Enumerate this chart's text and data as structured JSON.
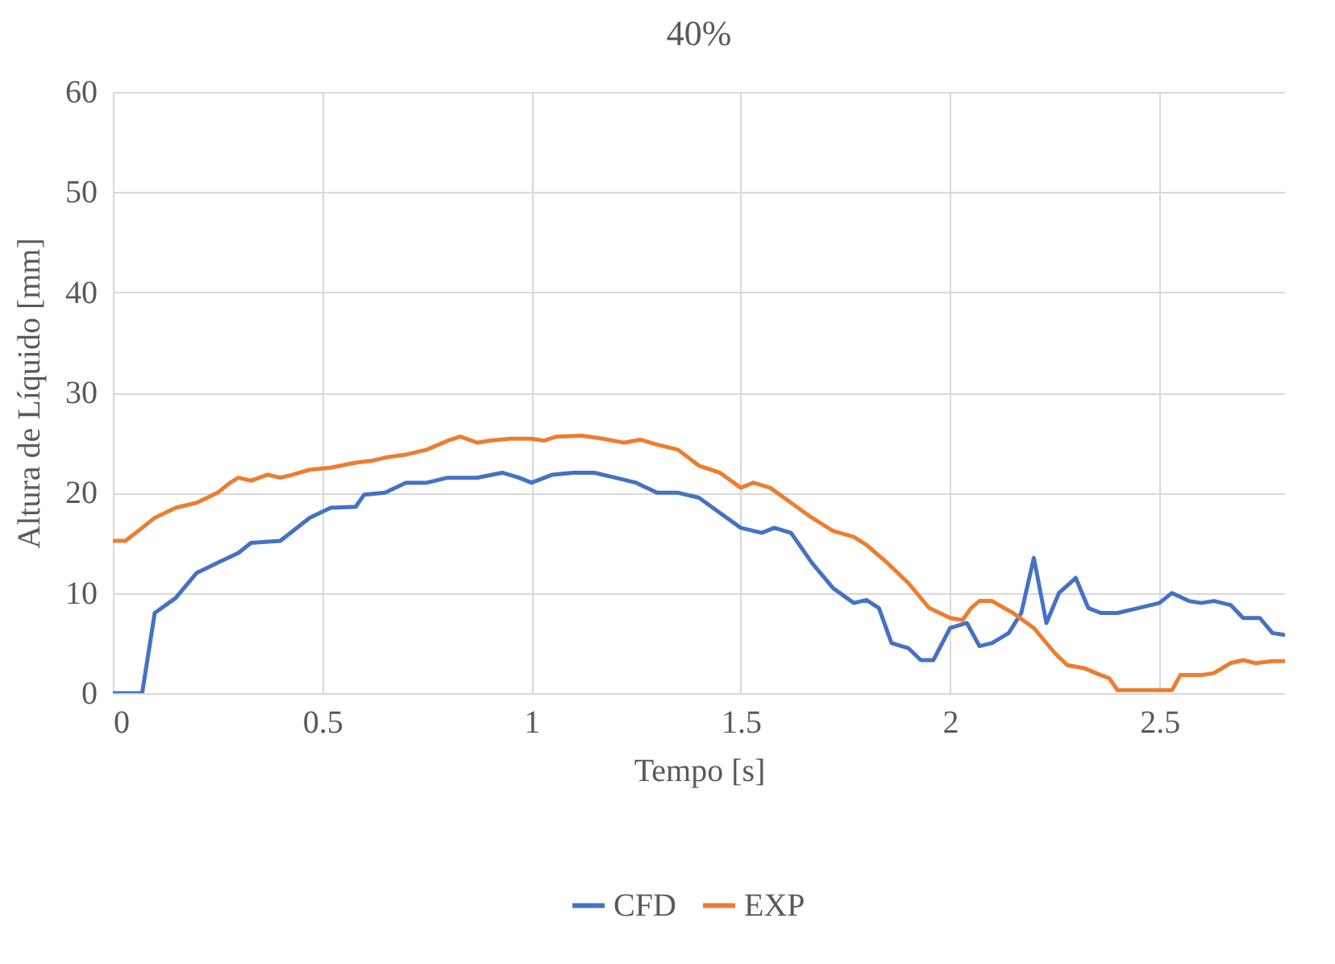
{
  "chart_data": {
    "type": "line",
    "title": "40%",
    "xlabel": "Tempo [s]",
    "ylabel": "Altura de Líquido [mm]",
    "xlim": [
      0,
      2.8
    ],
    "xticks": [
      0,
      0.5,
      1,
      1.5,
      2,
      2.5
    ],
    "ylim": [
      0,
      60
    ],
    "yticks": [
      0,
      10,
      20,
      30,
      40,
      50,
      60
    ],
    "grid": true,
    "legend": "bottom",
    "line_style": "solid",
    "marker": "none",
    "series": [
      {
        "name": "CFD",
        "color": "#4472c4",
        "x": [
          0,
          0.07,
          0.1,
          0.15,
          0.2,
          0.25,
          0.3,
          0.33,
          0.4,
          0.47,
          0.52,
          0.58,
          0.6,
          0.65,
          0.7,
          0.75,
          0.8,
          0.87,
          0.93,
          0.97,
          1.0,
          1.05,
          1.1,
          1.15,
          1.2,
          1.25,
          1.3,
          1.35,
          1.4,
          1.45,
          1.5,
          1.55,
          1.58,
          1.62,
          1.67,
          1.72,
          1.77,
          1.8,
          1.83,
          1.86,
          1.9,
          1.93,
          1.96,
          2.0,
          2.04,
          2.07,
          2.1,
          2.14,
          2.17,
          2.2,
          2.23,
          2.26,
          2.3,
          2.33,
          2.36,
          2.4,
          2.45,
          2.5,
          2.53,
          2.57,
          2.6,
          2.63,
          2.67,
          2.7,
          2.74,
          2.77,
          2.8
        ],
        "values": [
          0,
          0,
          8,
          9.5,
          12,
          13,
          14,
          15,
          15.2,
          17.5,
          18.5,
          18.6,
          19.8,
          20,
          21,
          21,
          21.5,
          21.5,
          22,
          21.5,
          21,
          21.8,
          22,
          22,
          21.5,
          21,
          20,
          20,
          19.5,
          18,
          16.5,
          16,
          16.5,
          16,
          13,
          10.5,
          9,
          9.3,
          8.5,
          5,
          4.5,
          3.3,
          3.3,
          6.5,
          7,
          4.7,
          5,
          6,
          8,
          13.5,
          7,
          10,
          11.5,
          8.5,
          8,
          8,
          8.5,
          9,
          10,
          9.2,
          9,
          9.2,
          8.8,
          7.5,
          7.5,
          6,
          5.8
        ]
      },
      {
        "name": "EXP",
        "color": "#ed7d31",
        "x": [
          0,
          0.03,
          0.07,
          0.1,
          0.15,
          0.2,
          0.25,
          0.28,
          0.3,
          0.33,
          0.37,
          0.4,
          0.43,
          0.47,
          0.52,
          0.58,
          0.62,
          0.65,
          0.7,
          0.75,
          0.8,
          0.83,
          0.87,
          0.9,
          0.95,
          1.0,
          1.03,
          1.06,
          1.12,
          1.17,
          1.22,
          1.26,
          1.3,
          1.35,
          1.4,
          1.45,
          1.5,
          1.53,
          1.57,
          1.62,
          1.67,
          1.72,
          1.77,
          1.8,
          1.85,
          1.9,
          1.95,
          2.0,
          2.03,
          2.05,
          2.07,
          2.1,
          2.15,
          2.2,
          2.25,
          2.28,
          2.32,
          2.36,
          2.38,
          2.4,
          2.45,
          2.5,
          2.53,
          2.55,
          2.6,
          2.63,
          2.67,
          2.7,
          2.73,
          2.77,
          2.8
        ],
        "values": [
          15.2,
          15.2,
          16.5,
          17.5,
          18.5,
          19,
          20,
          21,
          21.5,
          21.2,
          21.8,
          21.5,
          21.8,
          22.3,
          22.5,
          23,
          23.2,
          23.5,
          23.8,
          24.3,
          25.2,
          25.6,
          25,
          25.2,
          25.4,
          25.4,
          25.2,
          25.6,
          25.7,
          25.4,
          25,
          25.3,
          24.8,
          24.3,
          22.7,
          22,
          20.5,
          21,
          20.5,
          19,
          17.5,
          16.2,
          15.6,
          14.8,
          13,
          11,
          8.5,
          7.5,
          7.3,
          8.5,
          9.2,
          9.2,
          8,
          6.5,
          4,
          2.8,
          2.5,
          1.8,
          1.5,
          0.3,
          0.3,
          0.3,
          0.3,
          1.8,
          1.8,
          2,
          3,
          3.3,
          3,
          3.2,
          3.2
        ]
      }
    ]
  }
}
